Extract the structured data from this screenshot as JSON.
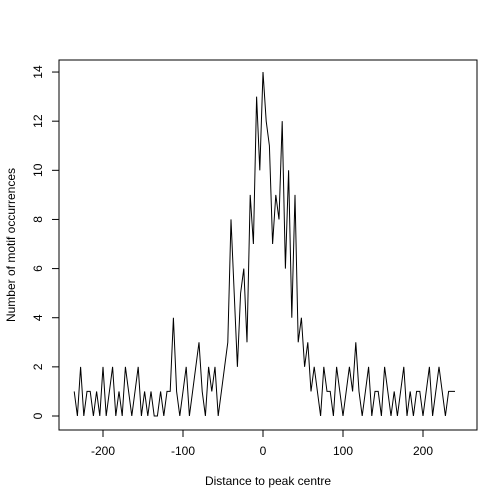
{
  "chart_data": {
    "type": "line",
    "x_label": "Distance to peak centre",
    "y_label": "Number of motif occurrences",
    "x": [
      -236,
      -232,
      -228,
      -224,
      -220,
      -216,
      -212,
      -208,
      -204,
      -200,
      -196,
      -192,
      -188,
      -184,
      -180,
      -176,
      -172,
      -168,
      -164,
      -160,
      -156,
      -152,
      -148,
      -144,
      -140,
      -136,
      -132,
      -128,
      -124,
      -120,
      -116,
      -112,
      -108,
      -104,
      -100,
      -96,
      -92,
      -88,
      -84,
      -80,
      -76,
      -72,
      -68,
      -64,
      -60,
      -56,
      -52,
      -48,
      -44,
      -40,
      -36,
      -32,
      -28,
      -24,
      -20,
      -16,
      -12,
      -8,
      -4,
      0,
      4,
      8,
      12,
      16,
      20,
      24,
      28,
      32,
      36,
      40,
      44,
      48,
      52,
      56,
      60,
      64,
      68,
      72,
      76,
      80,
      84,
      88,
      92,
      96,
      100,
      104,
      108,
      112,
      116,
      120,
      124,
      128,
      132,
      136,
      140,
      144,
      148,
      152,
      156,
      160,
      164,
      168,
      172,
      176,
      180,
      184,
      188,
      192,
      196,
      200,
      204,
      208,
      212,
      216,
      220,
      224,
      228,
      232,
      236,
      240
    ],
    "series": [
      {
        "color": "#000000",
        "values": [
          1,
          0,
          2,
          0,
          1,
          1,
          0,
          1,
          0,
          2,
          0,
          1,
          2,
          0,
          1,
          0,
          2,
          1,
          0,
          1,
          2,
          0,
          1,
          0,
          1,
          0,
          0,
          1,
          0,
          1,
          1,
          4,
          1,
          0,
          1,
          2,
          0,
          1,
          2,
          3,
          1,
          0,
          2,
          1,
          2,
          0,
          1,
          2,
          3,
          8,
          5,
          2,
          5,
          6,
          3,
          9,
          7,
          13,
          10,
          14,
          12,
          11,
          7,
          9,
          8,
          12,
          6,
          10,
          4,
          9,
          3,
          4,
          2,
          3,
          1,
          2,
          1,
          0,
          2,
          1,
          1,
          0,
          2,
          1,
          0,
          1,
          2,
          1,
          3,
          1,
          0,
          1,
          2,
          0,
          1,
          1,
          0,
          2,
          1,
          0,
          1,
          0,
          1,
          2,
          0,
          1,
          0,
          1,
          1,
          0,
          1,
          2,
          0,
          1,
          2,
          1,
          0,
          1,
          1,
          1
        ]
      }
    ],
    "xlim": [
      -255,
      267.5
    ],
    "ylim": [
      -0.57,
      14.49
    ],
    "xticks": [
      -200,
      -100,
      0,
      100,
      200
    ],
    "yticks": [
      0,
      2,
      4,
      6,
      8,
      10,
      12,
      14
    ]
  }
}
